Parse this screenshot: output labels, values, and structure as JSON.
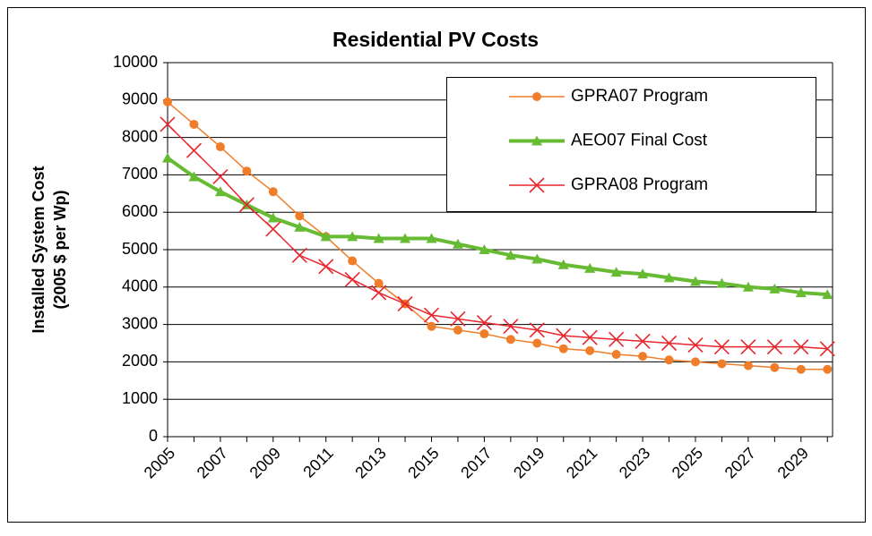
{
  "chart_data": {
    "type": "line",
    "title": "Residential PV Costs",
    "y_label": [
      "Installed System Cost",
      "(2005 $ per Wp)"
    ],
    "categories": [
      "2005",
      null,
      "2007",
      null,
      "2009",
      null,
      "2011",
      null,
      "2013",
      null,
      "2015",
      null,
      "2017",
      null,
      "2019",
      null,
      "2021",
      null,
      "2023",
      null,
      "2025",
      null,
      "2027",
      null,
      "2029",
      null
    ],
    "series": [
      {
        "name": "GPRA07 Program",
        "color": "#f07d2a",
        "marker": "circle",
        "line_width": 1.5,
        "values": [
          8950,
          8350,
          7750,
          7100,
          6550,
          5900,
          5350,
          4700,
          4100,
          3550,
          2950,
          2850,
          2750,
          2600,
          2500,
          2350,
          2300,
          2200,
          2150,
          2050,
          2000,
          1950,
          1900,
          1850,
          1800,
          1800
        ]
      },
      {
        "name": "AEO07 Final Cost",
        "color": "#66bb33",
        "marker": "triangle",
        "line_width": 4,
        "values": [
          7450,
          6950,
          6550,
          6200,
          5850,
          5600,
          5350,
          5350,
          5300,
          5300,
          5300,
          5150,
          5000,
          4850,
          4750,
          4600,
          4500,
          4400,
          4350,
          4250,
          4150,
          4100,
          4000,
          3950,
          3850,
          3800
        ]
      },
      {
        "name": "GPRA08 Program",
        "color": "#e8262d",
        "marker": "x",
        "line_width": 1.5,
        "values": [
          8350,
          7650,
          6950,
          6200,
          5550,
          4850,
          4550,
          4200,
          3850,
          3550,
          3250,
          3150,
          3050,
          2950,
          2850,
          2700,
          2650,
          2600,
          2550,
          2500,
          2450,
          2400,
          2400,
          2400,
          2400,
          2350
        ]
      }
    ],
    "ylim": [
      0,
      10000
    ],
    "yticks": [
      0,
      1000,
      2000,
      3000,
      4000,
      5000,
      6000,
      7000,
      8000,
      9000,
      10000
    ],
    "grid": true,
    "legend": "upper right"
  }
}
